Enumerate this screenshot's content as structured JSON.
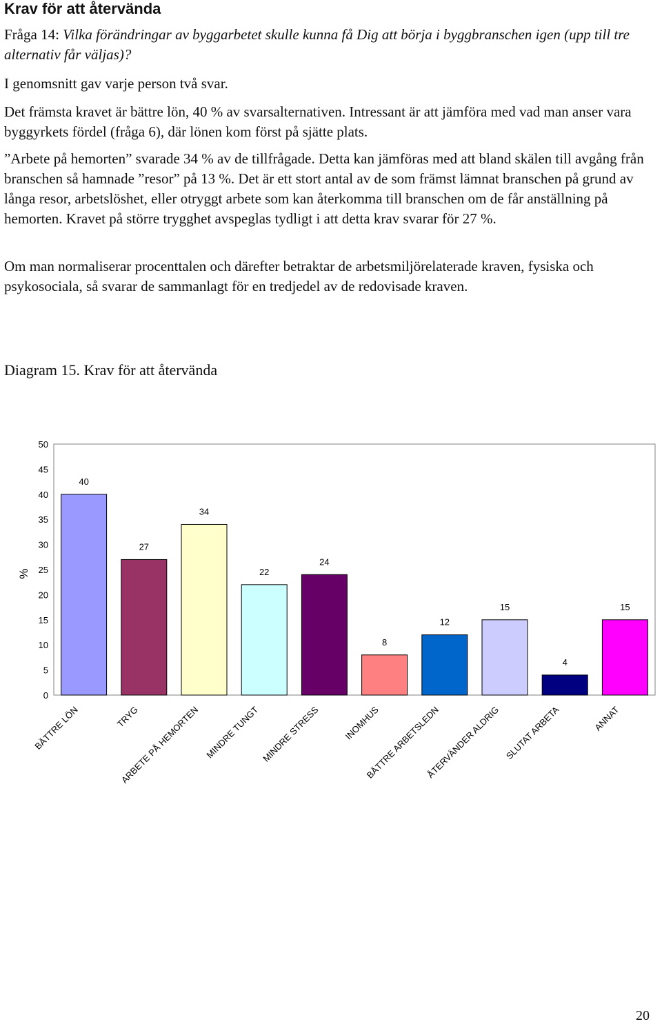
{
  "heading": "Krav för att återvända",
  "question": {
    "prefix": "Fråga 14: ",
    "text": "Vilka förändringar av byggarbetet skulle kunna få Dig att börja i byggbranschen igen (upp till tre alternativ får väljas)?"
  },
  "paragraphs": [
    "I genomsnitt gav varje person två svar.",
    "Det främsta kravet är bättre lön, 40 % av svarsalternativen. Intressant är att jämföra med vad man anser vara byggyrkets fördel (fråga 6), där lönen kom först på sjätte plats.",
    "”Arbete på hemorten” svarade 34 % av de tillfrågade. Detta kan jämföras med att bland skälen till avgång från branschen så hamnade ”resor” på 13 %. Det är ett stort antal av de som främst lämnat branschen på grund av långa resor, arbetslöshet, eller otryggt arbete som kan återkomma till branschen om de får anställning på hemorten. Kravet på större trygghet avspeglas tydligt i att detta krav svarar för 27 %.",
    "Om man normaliserar procenttalen och därefter betraktar de arbetsmiljörelaterade kraven, fysiska och psykosociala, så svarar de sammanlagt för en tredjedel av de redovisade kraven."
  ],
  "diagram_title": "Diagram 15. Krav för att återvända",
  "page_number": "20",
  "chart_data": {
    "type": "bar",
    "ylabel": "%",
    "ylim": [
      0,
      50
    ],
    "yticks": [
      0,
      5,
      10,
      15,
      20,
      25,
      30,
      35,
      40,
      45,
      50
    ],
    "categories": [
      "BÄTTRE LÖN",
      "TRYG",
      "ARBETE PÅ HEMORTEN",
      "MINDRE TUNGT",
      "MINDRE STRESS",
      "INOMHUS",
      "BÄTTRE ARBETSLEDN",
      "ÅTERVÄNDER ALDRIG",
      "SLUTAT ARBETA",
      "ANNAT"
    ],
    "values": [
      40,
      27,
      34,
      22,
      24,
      8,
      12,
      15,
      4,
      15
    ],
    "colors": [
      "#9999ff",
      "#993366",
      "#ffffcc",
      "#ccffff",
      "#660066",
      "#ff8080",
      "#0066cc",
      "#ccccff",
      "#000080",
      "#ff00ff"
    ],
    "grid": false
  }
}
